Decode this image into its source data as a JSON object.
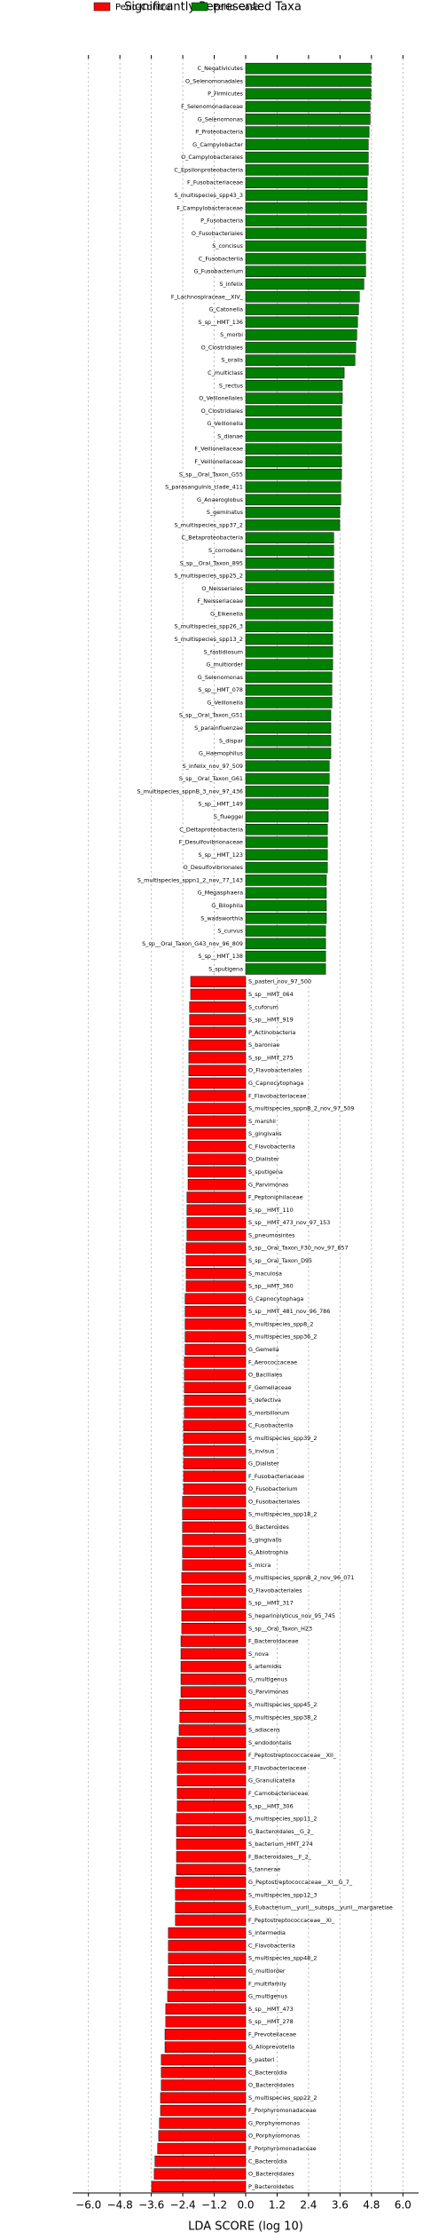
{
  "chart_data": {
    "type": "lefse",
    "title": "Significantly Represented Taxa",
    "xlabel": "LDA SCORE (log 10)",
    "xlim": [
      -6.6,
      6.6
    ],
    "xticks": [
      {
        "value": -6.0,
        "label": "−6.0"
      },
      {
        "value": -4.8,
        "label": "−4.8"
      },
      {
        "value": -3.6,
        "label": "−3.6"
      },
      {
        "value": -2.4,
        "label": "−2.4"
      },
      {
        "value": -1.2,
        "label": "−1.2"
      },
      {
        "value": 0.0,
        "label": "0.0"
      },
      {
        "value": 1.2,
        "label": "1.2"
      },
      {
        "value": 2.4,
        "label": "2.4"
      },
      {
        "value": 3.6,
        "label": "3.6"
      },
      {
        "value": 4.8,
        "label": "4.8"
      },
      {
        "value": 6.0,
        "label": "6.0"
      }
    ],
    "grid": true,
    "series": [
      {
        "name": "Perio-Case",
        "color": "#008000",
        "categories": [
          "C_Negativicutes",
          "O_Selenomonadales",
          "P_Firmicutes",
          "F_Selenomonadaceae",
          "G_Selenomonas",
          "P_Proteobacteria",
          "G_Campylobacter",
          "O_Campylobacterales",
          "C_Epsilonproteobacteria",
          "F_Fusobacteriaceae",
          "S_multispecies_spp43_3",
          "F_Campylobacteraceae",
          "P_Fusobacteria",
          "O_Fusobacteriales",
          "S_concisus",
          "C_Fusobacteriia",
          "G_Fusobacterium",
          "S_infelix",
          "F_Lachnospiraceae__XIV_",
          "G_Catonella",
          "S_sp__HMT_136",
          "S_morbi",
          "O_Clostridiales",
          "S_oralis",
          "C_multiclass",
          "S_rectus",
          "O_Veillonellales",
          "O_Clostridiales",
          "G_Veillonella",
          "S_dianae",
          "F_Veillonellaceae",
          "F_Veillonellaceae",
          "S_sp__Oral_Taxon_G55",
          "S_parasanguinis_clade_411",
          "G_Anaeroglobus",
          "S_geminatus",
          "S_multispecies_spp37_2",
          "C_Betaproteobacteria",
          "S_corrodens",
          "S_sp__Oral_Taxon_895",
          "S_multispecies_spp25_2",
          "O_Neisseriales",
          "F_Neisseriaceae",
          "G_Eikenella",
          "S_multispecies_spp26_3",
          "S_multispecies_spp13_2",
          "S_fastidiosum",
          "G_multiorder",
          "G_Selenomonas",
          "S_sp__HMT_078",
          "G_Veillonella",
          "S_sp__Oral_Taxon_G51",
          "S_parainfluenzae",
          "S_dispar",
          "G_Haemophilus",
          "S_infelix_nov_97_509",
          "S_sp__Oral_Taxon_G61",
          "S_multispecies_sppnB_3_nov_97_436",
          "S_sp__HMT_149",
          "S_flueggei",
          "C_Deltaproteobacteria",
          "F_Desulfovibrionaceae",
          "S_sp__HMT_123",
          "O_Desulfovibrionales",
          "S_multispecies_sppn1_2_nov_77_143",
          "G_Megasphaera",
          "G_Bilophila",
          "S_wadsworthia",
          "S_curvus",
          "S_sp__Oral_Taxon_G43_nov_96_809",
          "S_sp__HMT_138",
          "S_sputigena"
        ],
        "values": [
          4.78,
          4.78,
          4.78,
          4.75,
          4.75,
          4.71,
          4.68,
          4.68,
          4.68,
          4.64,
          4.64,
          4.61,
          4.61,
          4.61,
          4.58,
          4.58,
          4.58,
          4.51,
          4.34,
          4.31,
          4.27,
          4.24,
          4.2,
          4.17,
          3.76,
          3.69,
          3.69,
          3.66,
          3.66,
          3.66,
          3.66,
          3.66,
          3.66,
          3.63,
          3.63,
          3.59,
          3.59,
          3.36,
          3.36,
          3.36,
          3.36,
          3.36,
          3.32,
          3.32,
          3.32,
          3.32,
          3.32,
          3.32,
          3.29,
          3.29,
          3.29,
          3.25,
          3.25,
          3.25,
          3.25,
          3.19,
          3.19,
          3.15,
          3.15,
          3.15,
          3.12,
          3.12,
          3.12,
          3.12,
          3.08,
          3.08,
          3.08,
          3.08,
          3.05,
          3.05,
          3.05,
          3.05
        ]
      },
      {
        "name": "Perio-Control",
        "color": "#ff0000",
        "categories": [
          "S_pasteri_nov_97_500",
          "S_sp__HMT_064",
          "S_cuforum",
          "S_sp__HMT_919",
          "P_Actinobacteria",
          "S_baroniae",
          "S_sp__HMT_275",
          "O_Flavobacteriales",
          "G_Capnocytophaga",
          "F_Flavobacteriaceae",
          "S_multispecies_sppnB_2_nov_97_509",
          "S_marshii",
          "S_gingivalis",
          "C_Flavobacteriia",
          "O_Dialister",
          "S_sputigena",
          "G_Parvimonas",
          "F_Peptoniphilaceae",
          "S_sp__HMT_110",
          "S_sp__HMT_473_nov_97_153",
          "S_pneumosintes",
          "S_sp__Oral_Taxon_F30_nov_97_857",
          "S_sp__Oral_Taxon_D95",
          "S_maculosa",
          "S_sp__HMT_360",
          "G_Capnocytophaga",
          "S_sp__HMT_481_nov_96_786",
          "S_multispecies_spp8_2",
          "S_multispecies_spp36_2",
          "G_Gemella",
          "F_Aerococcaceae",
          "O_Bacillales",
          "F_Gemellaceae",
          "S_defectiva",
          "S_morbillorum",
          "C_Fusobacteriia",
          "S_multispecies_spp39_2",
          "S_invisus",
          "G_Dialister",
          "F_Fusobacteriaceae",
          "O_Fusobacterium",
          "O_Fusobacteriales",
          "S_multispecies_spp18_2",
          "G_Bacteroides",
          "S_gingivalis",
          "G_Abiotrophia",
          "S_micra",
          "S_multispecies_sppnB_2_nov_96_071",
          "O_Flavobacteriales",
          "S_sp__HMT_317",
          "S_heparinolyticus_nov_95_745",
          "S_sp__Oral_Taxon_H23",
          "F_Bacteroidaceae",
          "S_nova",
          "S_artemidis",
          "G_multigenus",
          "G_Parvimonas",
          "S_multispecies_spp45_2",
          "S_multispecies_spp38_2",
          "S_adiacens",
          "S_endodontalis",
          "F_Peptostreptococcaceae__XII_",
          "F_Flavobacteriaceae",
          "G_Granulicatella",
          "F_Carnobacteriaceae",
          "S_sp__HMT_306",
          "S_multispecies_spp11_2",
          "G_Bacteroidales__G_2_",
          "S_bacterium_HMT_274",
          "F_Bacteroidales__F_2_",
          "S_tannerae",
          "G_Peptostreptococcaceae__XI__G_7_",
          "S_multispecies_spp12_3",
          "S_Eubacterium__yurii__subsps__yurii__margaretiae",
          "F_Peptostreptococcaceae__XI_",
          "S_intermedia",
          "C_Flavobacteriia",
          "S_multispecies_spp48_2",
          "G_multiorder",
          "F_multifamily",
          "G_multigenus",
          "S_sp__HMT_473",
          "S_sp__HMT_278",
          "F_Prevotellaceae",
          "G_Alloprevotella",
          "S_pasteri",
          "C_Bacteroidia",
          "O_Bacteroidales",
          "S_multispecies_spp22_2",
          "F_Porphyromonadaceae",
          "G_Porphyromonas",
          "O_Porphyromonas",
          "F_Porphyromonadaceae",
          "C_Bacteroidia",
          "O_Bacteroidales",
          "P_Bacteroidetes"
        ],
        "values": [
          -2.1,
          -2.1,
          -2.14,
          -2.14,
          -2.14,
          -2.17,
          -2.17,
          -2.17,
          -2.17,
          -2.17,
          -2.2,
          -2.2,
          -2.2,
          -2.2,
          -2.2,
          -2.2,
          -2.2,
          -2.24,
          -2.24,
          -2.24,
          -2.24,
          -2.27,
          -2.27,
          -2.27,
          -2.27,
          -2.31,
          -2.31,
          -2.31,
          -2.31,
          -2.31,
          -2.34,
          -2.34,
          -2.34,
          -2.34,
          -2.34,
          -2.37,
          -2.37,
          -2.37,
          -2.37,
          -2.37,
          -2.37,
          -2.41,
          -2.41,
          -2.41,
          -2.41,
          -2.41,
          -2.41,
          -2.44,
          -2.44,
          -2.44,
          -2.44,
          -2.44,
          -2.47,
          -2.47,
          -2.47,
          -2.47,
          -2.47,
          -2.51,
          -2.51,
          -2.54,
          -2.61,
          -2.61,
          -2.61,
          -2.61,
          -2.61,
          -2.61,
          -2.64,
          -2.64,
          -2.64,
          -2.64,
          -2.64,
          -2.68,
          -2.68,
          -2.68,
          -2.68,
          -2.95,
          -2.95,
          -2.95,
          -2.95,
          -2.95,
          -2.98,
          -3.05,
          -3.05,
          -3.08,
          -3.08,
          -3.22,
          -3.22,
          -3.22,
          -3.25,
          -3.25,
          -3.29,
          -3.32,
          -3.36,
          -3.46,
          -3.49,
          -3.59
        ]
      }
    ]
  }
}
